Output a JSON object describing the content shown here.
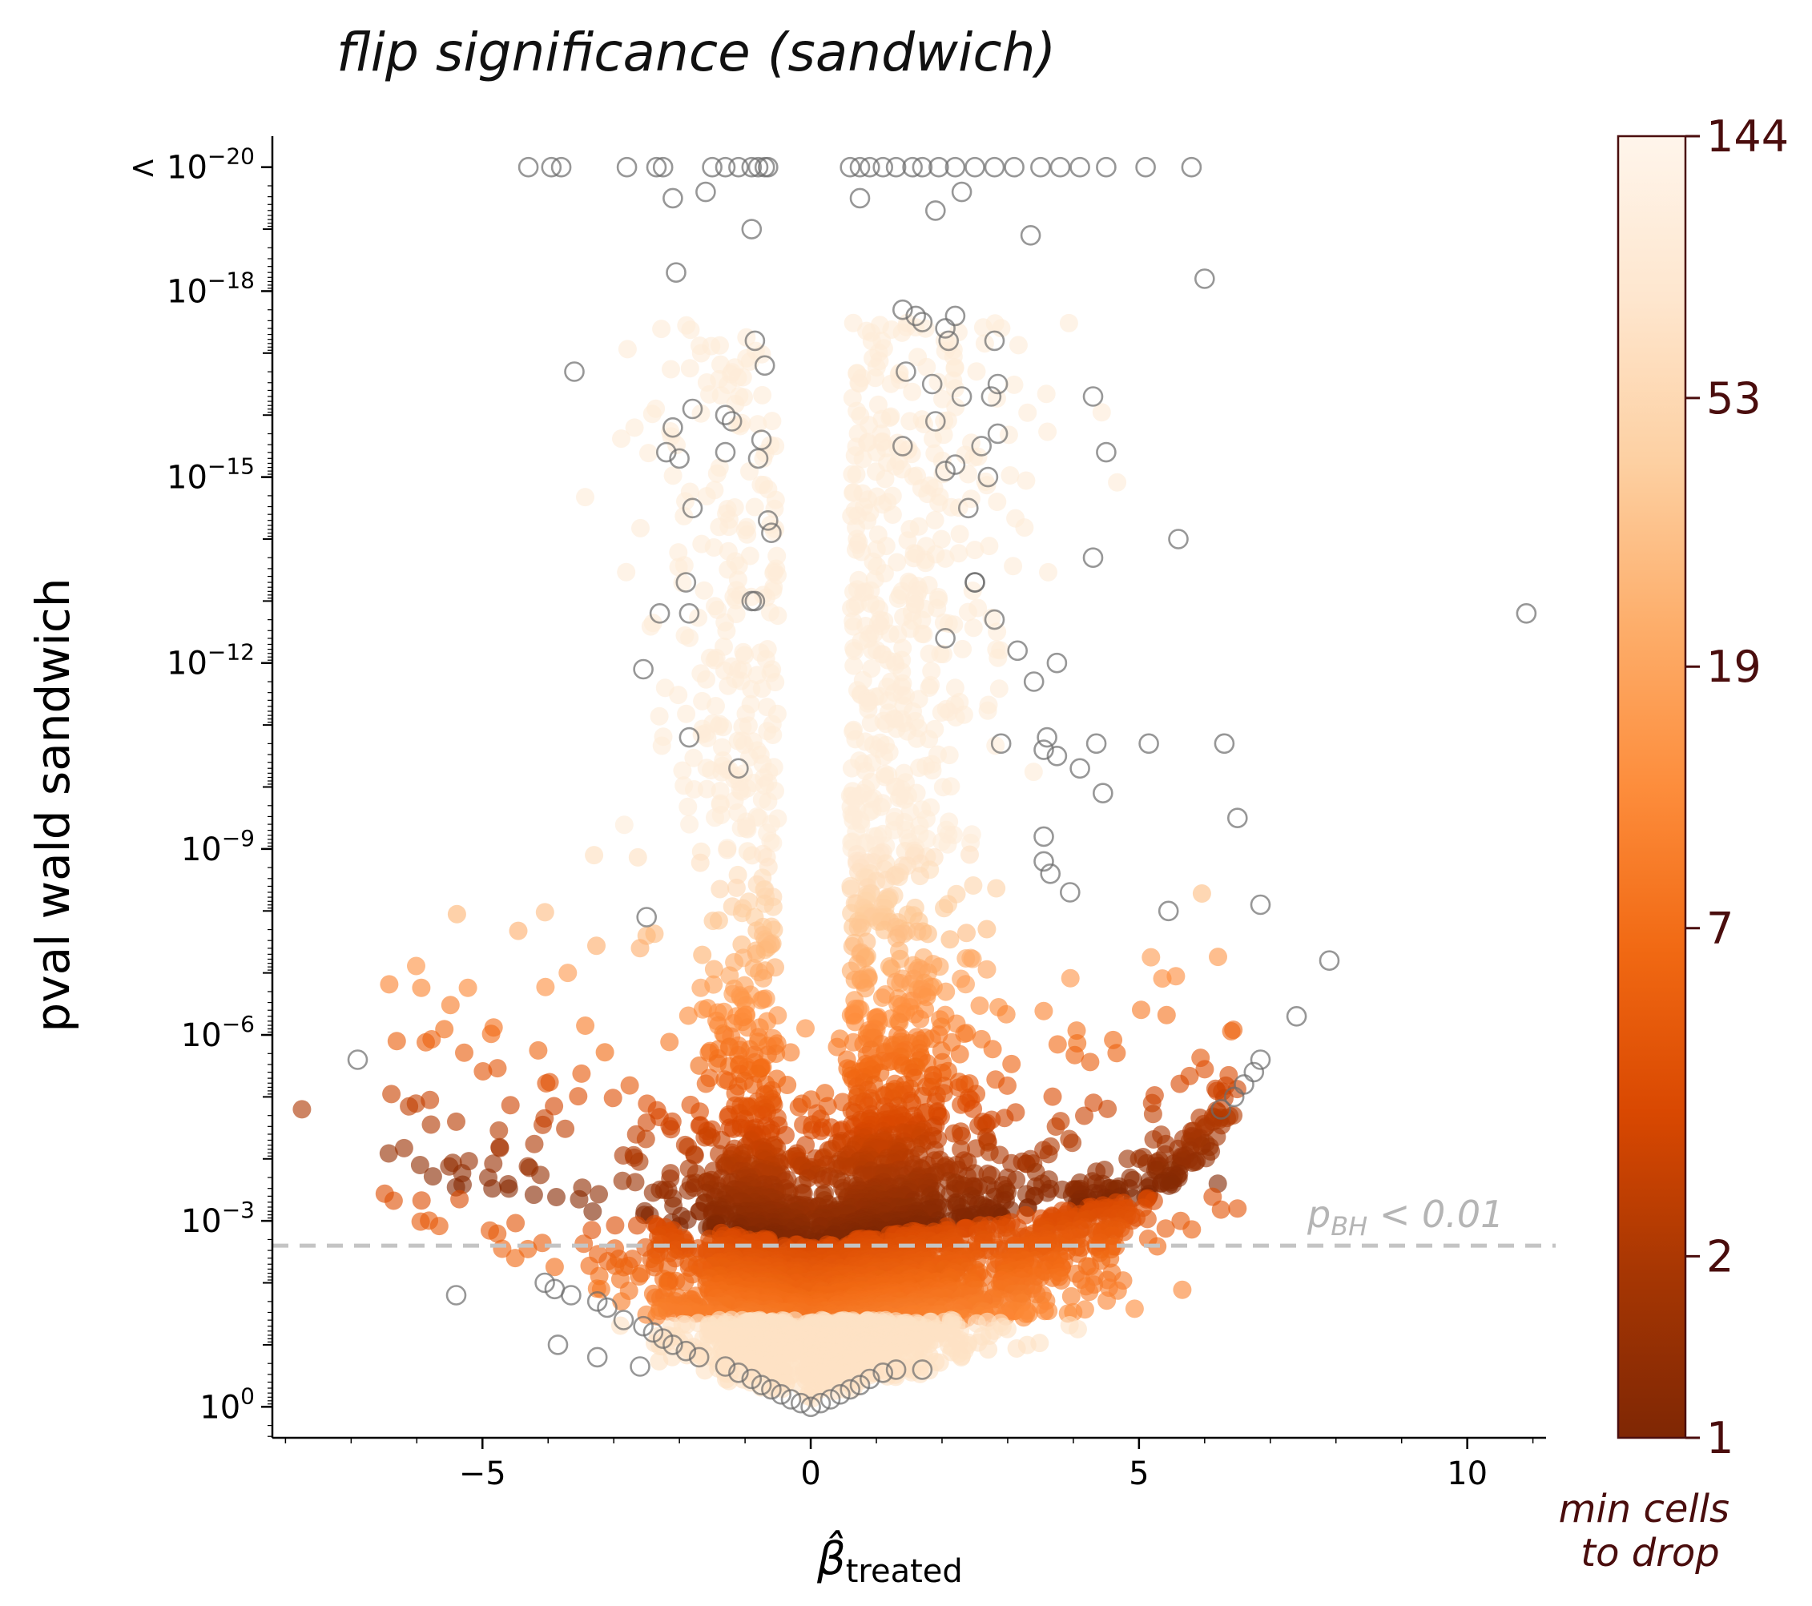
{
  "chart_data": {
    "type": "scatter",
    "title": "flip significance (sandwich)",
    "xlabel": "β̂",
    "xlabel_subscript": "treated",
    "ylabel": "pval wald sandwich",
    "y_scale": "log10, inverted (-log10 p)",
    "xlim": [
      -8.2,
      11.2
    ],
    "ylim_neglog10": [
      -0.5,
      20.5
    ],
    "x_ticks": [
      "−5",
      "0",
      "5",
      "10"
    ],
    "x_tick_values": [
      -5,
      0,
      5,
      10
    ],
    "y_ticks": [
      {
        "neglog10p": 0,
        "base": "10",
        "exp": "0",
        "prefix": ""
      },
      {
        "neglog10p": 3,
        "base": "10",
        "exp": "−3",
        "prefix": ""
      },
      {
        "neglog10p": 6,
        "base": "10",
        "exp": "−6",
        "prefix": ""
      },
      {
        "neglog10p": 9,
        "base": "10",
        "exp": "−9",
        "prefix": ""
      },
      {
        "neglog10p": 12,
        "base": "10",
        "exp": "−12",
        "prefix": ""
      },
      {
        "neglog10p": 15,
        "base": "10",
        "exp": "−15",
        "prefix": ""
      },
      {
        "neglog10p": 18,
        "base": "10",
        "exp": "−18",
        "prefix": ""
      },
      {
        "neglog10p": 20,
        "base": "10",
        "exp": "−20",
        "prefix": "< "
      }
    ],
    "threshold": {
      "neglog10p": 2.6,
      "label_main": "p",
      "label_sub": "BH",
      "label_rest": " < 0.01",
      "color": "#c0c0c0"
    },
    "colorbar": {
      "label_line1": "min cells",
      "label_line2": "to drop",
      "ticks": [
        "1",
        "2",
        "7",
        "19",
        "53",
        "144"
      ],
      "tick_values": [
        1,
        2,
        7,
        19,
        53,
        144
      ],
      "scale": "log",
      "cmap_stops": [
        "#7f2704",
        "#a63603",
        "#d94801",
        "#f16913",
        "#fd8d3c",
        "#fdae6b",
        "#fdd0a2",
        "#fee6ce",
        "#fff5eb"
      ]
    },
    "series": [
      {
        "name": "flip (min cells to drop)",
        "marker": "filled circle, colored by min cells to drop",
        "cloud": "V-shaped density over beta [-7.8, 7.3], -log10 p [0, 18]; high p near beta=0"
      },
      {
        "name": "no flip",
        "marker": "open grey circle",
        "points": [
          [
            -4.3,
            20
          ],
          [
            -3.95,
            20
          ],
          [
            -3.8,
            20
          ],
          [
            -2.8,
            20
          ],
          [
            -2.35,
            20
          ],
          [
            -2.25,
            20
          ],
          [
            -1.5,
            20
          ],
          [
            -1.3,
            20
          ],
          [
            -1.1,
            20
          ],
          [
            -0.9,
            20
          ],
          [
            -0.8,
            20
          ],
          [
            -0.7,
            20
          ],
          [
            -0.65,
            20
          ],
          [
            0.6,
            20
          ],
          [
            0.75,
            20
          ],
          [
            0.9,
            20
          ],
          [
            1.1,
            20
          ],
          [
            1.3,
            20
          ],
          [
            1.55,
            20
          ],
          [
            1.7,
            20
          ],
          [
            1.95,
            20
          ],
          [
            2.2,
            20
          ],
          [
            2.5,
            20
          ],
          [
            2.8,
            20
          ],
          [
            3.1,
            20
          ],
          [
            3.5,
            20
          ],
          [
            3.8,
            20
          ],
          [
            4.1,
            20
          ],
          [
            4.5,
            20
          ],
          [
            5.1,
            20
          ],
          [
            5.8,
            20
          ],
          [
            -2.1,
            19.5
          ],
          [
            -1.6,
            19.6
          ],
          [
            -0.9,
            19.0
          ],
          [
            0.75,
            19.5
          ],
          [
            1.9,
            19.3
          ],
          [
            2.3,
            19.6
          ],
          [
            3.35,
            18.9
          ],
          [
            -2.05,
            18.3
          ],
          [
            -0.85,
            17.2
          ],
          [
            -0.7,
            16.8
          ],
          [
            -3.6,
            16.7
          ],
          [
            -1.3,
            16.0
          ],
          [
            -1.8,
            16.1
          ],
          [
            -2.1,
            15.8
          ],
          [
            -2.2,
            15.4
          ],
          [
            -1.2,
            15.9
          ],
          [
            -0.75,
            15.6
          ],
          [
            -2.0,
            15.3
          ],
          [
            -1.3,
            15.4
          ],
          [
            -0.8,
            15.3
          ],
          [
            6.0,
            18.2
          ],
          [
            1.4,
            17.7
          ],
          [
            1.6,
            17.6
          ],
          [
            1.7,
            17.5
          ],
          [
            2.2,
            17.6
          ],
          [
            2.05,
            17.4
          ],
          [
            2.1,
            17.2
          ],
          [
            2.8,
            17.2
          ],
          [
            1.45,
            16.7
          ],
          [
            1.85,
            16.5
          ],
          [
            2.3,
            16.3
          ],
          [
            2.75,
            16.3
          ],
          [
            2.85,
            16.5
          ],
          [
            1.9,
            15.9
          ],
          [
            2.85,
            15.7
          ],
          [
            2.6,
            15.5
          ],
          [
            1.4,
            15.5
          ],
          [
            2.05,
            15.1
          ],
          [
            2.2,
            15.2
          ],
          [
            2.7,
            15.0
          ],
          [
            4.3,
            16.3
          ],
          [
            4.5,
            15.4
          ],
          [
            2.4,
            14.5
          ],
          [
            -1.8,
            14.5
          ],
          [
            -0.65,
            14.3
          ],
          [
            -0.6,
            14.1
          ],
          [
            4.3,
            13.7
          ],
          [
            5.6,
            14.0
          ],
          [
            -1.9,
            13.3
          ],
          [
            -1.85,
            12.8
          ],
          [
            -2.3,
            12.8
          ],
          [
            -0.9,
            13.0
          ],
          [
            -0.85,
            13.0
          ],
          [
            2.5,
            13.3
          ],
          [
            2.5,
            13.3
          ],
          [
            2.8,
            12.7
          ],
          [
            2.05,
            12.4
          ],
          [
            3.15,
            12.2
          ],
          [
            3.4,
            11.7
          ],
          [
            3.75,
            12.0
          ],
          [
            -2.55,
            11.9
          ],
          [
            10.9,
            12.8
          ],
          [
            -1.85,
            10.8
          ],
          [
            -1.1,
            10.3
          ],
          [
            3.6,
            10.8
          ],
          [
            3.55,
            10.6
          ],
          [
            3.75,
            10.5
          ],
          [
            2.9,
            10.7
          ],
          [
            4.35,
            10.7
          ],
          [
            5.15,
            10.7
          ],
          [
            6.3,
            10.7
          ],
          [
            4.1,
            10.3
          ],
          [
            4.45,
            9.9
          ],
          [
            6.5,
            9.5
          ],
          [
            3.55,
            9.2
          ],
          [
            3.55,
            8.8
          ],
          [
            3.65,
            8.6
          ],
          [
            3.95,
            8.3
          ],
          [
            5.45,
            8.0
          ],
          [
            6.85,
            8.1
          ],
          [
            -2.5,
            7.9
          ],
          [
            7.9,
            7.2
          ],
          [
            7.4,
            6.3
          ],
          [
            -6.9,
            5.6
          ],
          [
            6.85,
            5.6
          ],
          [
            6.75,
            5.4
          ],
          [
            6.6,
            5.2
          ],
          [
            6.45,
            5.0
          ],
          [
            6.25,
            4.8
          ],
          [
            -5.4,
            1.8
          ],
          [
            -4.05,
            2.0
          ],
          [
            -3.9,
            1.9
          ],
          [
            -3.65,
            1.8
          ],
          [
            -3.25,
            1.7
          ],
          [
            -3.1,
            1.6
          ],
          [
            -2.85,
            1.4
          ],
          [
            -2.55,
            1.3
          ],
          [
            -2.4,
            1.2
          ],
          [
            -2.25,
            1.1
          ],
          [
            -2.1,
            1.0
          ],
          [
            -1.9,
            0.9
          ],
          [
            -1.7,
            0.8
          ],
          [
            -3.85,
            1.0
          ],
          [
            -3.25,
            0.8
          ],
          [
            -2.6,
            0.65
          ],
          [
            -1.3,
            0.65
          ],
          [
            -1.1,
            0.55
          ],
          [
            -0.9,
            0.45
          ],
          [
            -0.75,
            0.35
          ],
          [
            -0.6,
            0.28
          ],
          [
            -0.45,
            0.2
          ],
          [
            -0.3,
            0.12
          ],
          [
            -0.15,
            0.06
          ],
          [
            0.0,
            0.0
          ],
          [
            0.15,
            0.06
          ],
          [
            0.3,
            0.12
          ],
          [
            0.45,
            0.2
          ],
          [
            0.6,
            0.28
          ],
          [
            0.75,
            0.35
          ],
          [
            0.9,
            0.45
          ],
          [
            1.1,
            0.55
          ],
          [
            1.3,
            0.6
          ],
          [
            1.7,
            0.6
          ]
        ]
      }
    ]
  }
}
